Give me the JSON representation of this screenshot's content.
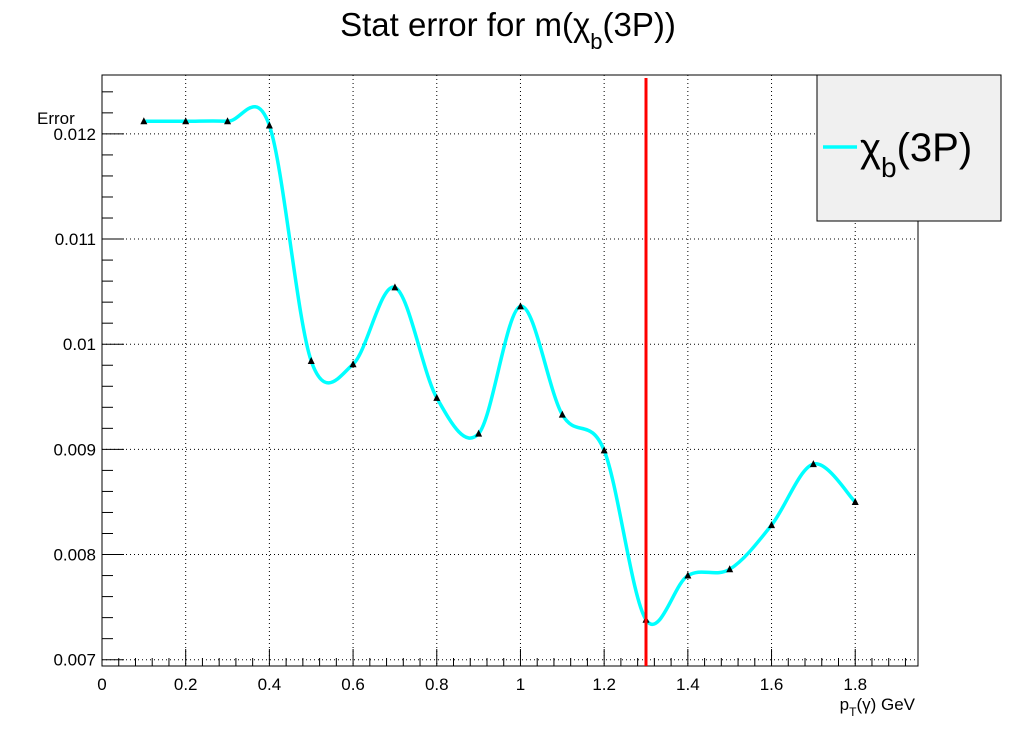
{
  "chart_data": {
    "type": "line",
    "title": {
      "prefix": "Stat error for m(",
      "symbol": "χ",
      "subscript": "b",
      "suffix": "(3P))"
    },
    "xlabel": {
      "main": "p",
      "subscript": "T",
      "suffix": "(γ) GeV"
    },
    "ylabel": "Error",
    "xlim": [
      0,
      1.95
    ],
    "ylim": [
      0.00694,
      0.01256
    ],
    "x_ticks": [
      {
        "value": 0,
        "label": "0"
      },
      {
        "value": 0.2,
        "label": "0.2"
      },
      {
        "value": 0.4,
        "label": "0.4"
      },
      {
        "value": 0.6,
        "label": "0.6"
      },
      {
        "value": 0.8,
        "label": "0.8"
      },
      {
        "value": 1.0,
        "label": "1"
      },
      {
        "value": 1.2,
        "label": "1.2"
      },
      {
        "value": 1.4,
        "label": "1.4"
      },
      {
        "value": 1.6,
        "label": "1.6"
      },
      {
        "value": 1.8,
        "label": "1.8"
      }
    ],
    "y_ticks": [
      {
        "value": 0.007,
        "label": "0.007"
      },
      {
        "value": 0.008,
        "label": "0.008"
      },
      {
        "value": 0.009,
        "label": "0.009"
      },
      {
        "value": 0.01,
        "label": "0.01"
      },
      {
        "value": 0.011,
        "label": "0.011"
      },
      {
        "value": 0.012,
        "label": "0.012"
      }
    ],
    "grid": true,
    "legend_position": "top-right",
    "series": [
      {
        "name": {
          "symbol": "χ",
          "subscript": "b",
          "suffix": "(3P)"
        },
        "color": "#00ffff",
        "marker_color": "#000000",
        "x": [
          0.1,
          0.2,
          0.3,
          0.4,
          0.5,
          0.6,
          0.7,
          0.8,
          0.9,
          1.0,
          1.1,
          1.2,
          1.3,
          1.4,
          1.5,
          1.6,
          1.7,
          1.8
        ],
        "y": [
          0.01212,
          0.01212,
          0.01212,
          0.01208,
          0.00984,
          0.00981,
          0.01054,
          0.00949,
          0.00915,
          0.01036,
          0.00933,
          0.00899,
          0.00738,
          0.0078,
          0.00786,
          0.00828,
          0.00886,
          0.0085
        ]
      }
    ],
    "vertical_line": {
      "x": 1.3,
      "color": "#ff0000"
    }
  }
}
